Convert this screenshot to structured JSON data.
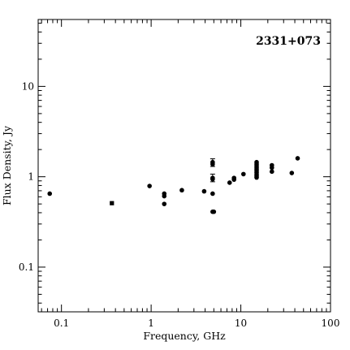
{
  "chart_data": {
    "type": "scatter",
    "title": "2331+073",
    "xlabel": "Frequency, GHz",
    "ylabel": "Flux Density, Jy",
    "xscale": "log",
    "yscale": "log",
    "xlim": [
      0.055,
      100
    ],
    "ylim": [
      0.032,
      55
    ],
    "grid": false,
    "legend": "none",
    "x_major_ticks": [
      0.1,
      1,
      10,
      100
    ],
    "x_tick_labels": [
      "0.1",
      "1",
      "10",
      "100"
    ],
    "y_major_ticks": [
      0.1,
      1,
      10
    ],
    "y_tick_labels": [
      "0.1",
      "1",
      "10"
    ],
    "marker_color": "#000000",
    "points": [
      {
        "x": 0.074,
        "y": 0.65
      },
      {
        "x": 0.365,
        "y": 0.51,
        "marker": "square"
      },
      {
        "x": 0.96,
        "y": 0.79
      },
      {
        "x": 1.4,
        "y": 0.65
      },
      {
        "x": 1.4,
        "y": 0.61
      },
      {
        "x": 1.4,
        "y": 0.5
      },
      {
        "x": 2.2,
        "y": 0.71
      },
      {
        "x": 3.9,
        "y": 0.69
      },
      {
        "x": 4.85,
        "y": 1.45,
        "err_lo": 1.3,
        "err_hi": 1.58
      },
      {
        "x": 4.85,
        "y": 1.38
      },
      {
        "x": 4.85,
        "y": 0.97,
        "err_lo": 0.88,
        "err_hi": 1.07
      },
      {
        "x": 4.85,
        "y": 0.94
      },
      {
        "x": 4.85,
        "y": 0.65
      },
      {
        "x": 4.85,
        "y": 0.41
      },
      {
        "x": 5.0,
        "y": 0.41
      },
      {
        "x": 7.5,
        "y": 0.86
      },
      {
        "x": 8.4,
        "y": 0.93
      },
      {
        "x": 8.4,
        "y": 0.97
      },
      {
        "x": 10.7,
        "y": 1.07
      },
      {
        "x": 15.0,
        "y": 1.45
      },
      {
        "x": 15.0,
        "y": 1.38
      },
      {
        "x": 15.0,
        "y": 1.32
      },
      {
        "x": 15.0,
        "y": 1.26
      },
      {
        "x": 15.0,
        "y": 1.21
      },
      {
        "x": 15.0,
        "y": 1.16
      },
      {
        "x": 15.0,
        "y": 1.11
      },
      {
        "x": 15.0,
        "y": 1.06
      },
      {
        "x": 15.0,
        "y": 1.02
      },
      {
        "x": 15.0,
        "y": 0.98
      },
      {
        "x": 22.2,
        "y": 1.34
      },
      {
        "x": 22.2,
        "y": 1.26
      },
      {
        "x": 22.2,
        "y": 1.14
      },
      {
        "x": 37.0,
        "y": 1.1
      },
      {
        "x": 43.0,
        "y": 1.6
      }
    ]
  }
}
